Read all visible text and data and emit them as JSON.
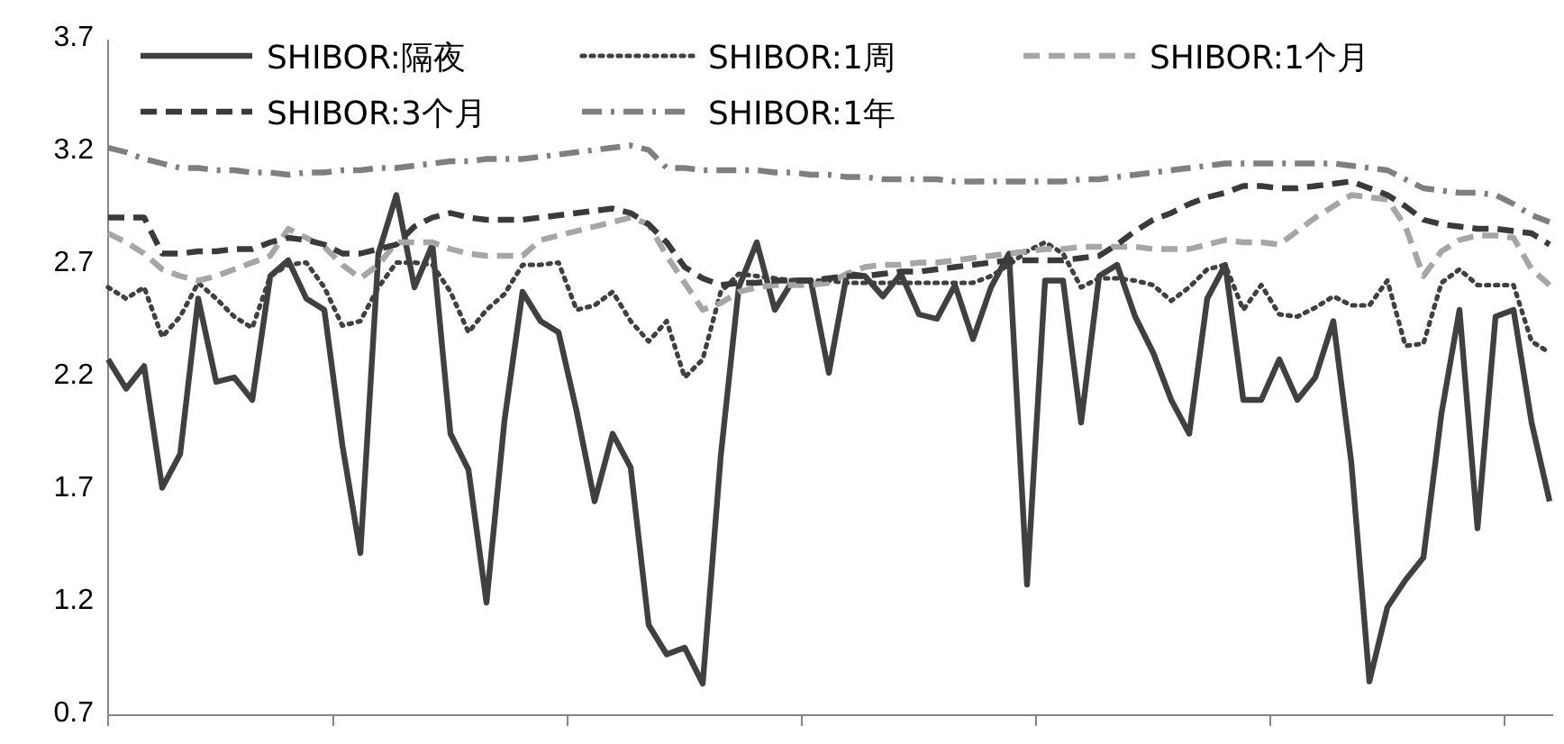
{
  "chart_data": {
    "type": "line",
    "categories": [
      null,
      null,
      null,
      null,
      null,
      null,
      null,
      null,
      null,
      null,
      null,
      null,
      null,
      null,
      null,
      null,
      null,
      null,
      null,
      null,
      null,
      null,
      null,
      null,
      null,
      null,
      null,
      null,
      null,
      null,
      null,
      null,
      null,
      null,
      null,
      null,
      null,
      null,
      null,
      null,
      null,
      null,
      null,
      null,
      null,
      null,
      null,
      null,
      null,
      null,
      null,
      null,
      null,
      null,
      null,
      null,
      null,
      null,
      null,
      null,
      null,
      null,
      null,
      null,
      null,
      null,
      null,
      null,
      null,
      null,
      null,
      null,
      null,
      null,
      null,
      null,
      null,
      null,
      null,
      null,
      null
    ],
    "ylim": [
      0.7,
      3.7
    ],
    "yticks": [
      0.7,
      1.2,
      1.7,
      2.2,
      2.7,
      3.2,
      3.7
    ],
    "tick_labels": "y",
    "legend": "top",
    "grid": false,
    "marker": "none",
    "series": [
      {
        "name": "SHIBOR:隔夜",
        "color": "#404040",
        "line_style": "solid",
        "values": [
          2.28,
          2.15,
          2.25,
          1.71,
          1.86,
          2.55,
          2.18,
          2.2,
          2.1,
          2.65,
          2.72,
          2.55,
          2.5,
          1.9,
          1.42,
          2.75,
          3.01,
          2.6,
          2.79,
          1.95,
          1.79,
          1.2,
          2.01,
          2.58,
          2.45,
          2.4,
          2.05,
          1.65,
          1.95,
          1.8,
          1.1,
          0.97,
          1.0,
          0.84,
          1.85,
          2.6,
          2.8,
          2.5,
          2.63,
          2.63,
          2.22,
          2.66,
          2.65,
          2.56,
          2.66,
          2.48,
          2.46,
          2.61,
          2.37,
          2.6,
          2.75,
          1.28,
          2.63,
          2.63,
          2.0,
          2.65,
          2.7,
          2.47,
          2.31,
          2.1,
          1.95,
          2.55,
          2.7,
          2.1,
          2.1,
          2.28,
          2.1,
          2.2,
          2.45,
          1.82,
          0.85,
          1.18,
          1.3,
          1.4,
          2.04,
          2.5,
          1.53,
          2.47,
          2.5,
          2.0,
          1.65
        ]
      },
      {
        "name": "SHIBOR:1周",
        "color": "#404040",
        "line_style": "dotted",
        "values": [
          2.6,
          2.55,
          2.6,
          2.38,
          2.47,
          2.62,
          2.55,
          2.47,
          2.42,
          2.65,
          2.7,
          2.71,
          2.6,
          2.43,
          2.45,
          2.6,
          2.71,
          2.71,
          2.7,
          2.58,
          2.4,
          2.5,
          2.57,
          2.7,
          2.7,
          2.71,
          2.5,
          2.52,
          2.58,
          2.45,
          2.36,
          2.45,
          2.2,
          2.28,
          2.58,
          2.66,
          2.65,
          2.64,
          2.63,
          2.63,
          2.63,
          2.62,
          2.62,
          2.62,
          2.62,
          2.62,
          2.62,
          2.62,
          2.62,
          2.65,
          2.7,
          2.76,
          2.8,
          2.75,
          2.6,
          2.64,
          2.64,
          2.63,
          2.61,
          2.54,
          2.6,
          2.68,
          2.7,
          2.5,
          2.61,
          2.48,
          2.47,
          2.51,
          2.56,
          2.52,
          2.52,
          2.63,
          2.34,
          2.35,
          2.62,
          2.68,
          2.61,
          2.61,
          2.61,
          2.36,
          2.31
        ]
      },
      {
        "name": "SHIBOR:1个月",
        "color": "#a6a6a6",
        "line_style": "dashed",
        "values": [
          2.84,
          2.8,
          2.75,
          2.68,
          2.65,
          2.63,
          2.65,
          2.68,
          2.71,
          2.74,
          2.86,
          2.82,
          2.78,
          2.7,
          2.64,
          2.7,
          2.8,
          2.8,
          2.8,
          2.77,
          2.75,
          2.74,
          2.74,
          2.74,
          2.81,
          2.83,
          2.85,
          2.87,
          2.89,
          2.91,
          2.88,
          2.74,
          2.62,
          2.5,
          2.53,
          2.58,
          2.6,
          2.61,
          2.61,
          2.61,
          2.62,
          2.66,
          2.69,
          2.7,
          2.7,
          2.71,
          2.71,
          2.72,
          2.73,
          2.74,
          2.75,
          2.76,
          2.77,
          2.77,
          2.78,
          2.78,
          2.78,
          2.78,
          2.77,
          2.77,
          2.77,
          2.79,
          2.81,
          2.8,
          2.8,
          2.79,
          2.85,
          2.91,
          2.96,
          3.01,
          3.0,
          2.99,
          2.87,
          2.65,
          2.76,
          2.81,
          2.83,
          2.83,
          2.82,
          2.68,
          2.61
        ]
      },
      {
        "name": "SHIBOR:3个月",
        "color": "#3a3a3a",
        "line_style": "dashed",
        "values": [
          2.91,
          2.91,
          2.91,
          2.75,
          2.75,
          2.76,
          2.76,
          2.77,
          2.77,
          2.8,
          2.82,
          2.81,
          2.79,
          2.75,
          2.75,
          2.77,
          2.79,
          2.87,
          2.91,
          2.93,
          2.91,
          2.9,
          2.9,
          2.9,
          2.91,
          2.92,
          2.93,
          2.94,
          2.95,
          2.93,
          2.88,
          2.8,
          2.69,
          2.64,
          2.61,
          2.62,
          2.62,
          2.63,
          2.63,
          2.63,
          2.64,
          2.65,
          2.65,
          2.66,
          2.67,
          2.67,
          2.68,
          2.69,
          2.7,
          2.71,
          2.72,
          2.72,
          2.72,
          2.72,
          2.73,
          2.74,
          2.79,
          2.85,
          2.9,
          2.93,
          2.97,
          3.0,
          3.02,
          3.05,
          3.05,
          3.04,
          3.04,
          3.05,
          3.06,
          3.07,
          3.04,
          3.01,
          2.96,
          2.9,
          2.88,
          2.87,
          2.86,
          2.86,
          2.85,
          2.84,
          2.79
        ]
      },
      {
        "name": "SHIBOR:1年",
        "color": "#7f7f7f",
        "line_style": "dashdot",
        "values": [
          3.22,
          3.2,
          3.17,
          3.15,
          3.13,
          3.13,
          3.12,
          3.12,
          3.11,
          3.11,
          3.1,
          3.11,
          3.11,
          3.12,
          3.12,
          3.13,
          3.13,
          3.14,
          3.15,
          3.16,
          3.16,
          3.17,
          3.17,
          3.17,
          3.18,
          3.19,
          3.2,
          3.21,
          3.22,
          3.23,
          3.21,
          3.13,
          3.13,
          3.12,
          3.12,
          3.12,
          3.12,
          3.11,
          3.11,
          3.1,
          3.1,
          3.09,
          3.09,
          3.08,
          3.08,
          3.08,
          3.08,
          3.07,
          3.07,
          3.07,
          3.07,
          3.07,
          3.07,
          3.07,
          3.08,
          3.08,
          3.09,
          3.1,
          3.11,
          3.12,
          3.13,
          3.14,
          3.15,
          3.15,
          3.15,
          3.15,
          3.15,
          3.15,
          3.15,
          3.14,
          3.13,
          3.12,
          3.08,
          3.04,
          3.03,
          3.02,
          3.02,
          3.01,
          2.97,
          2.92,
          2.89
        ]
      }
    ]
  }
}
